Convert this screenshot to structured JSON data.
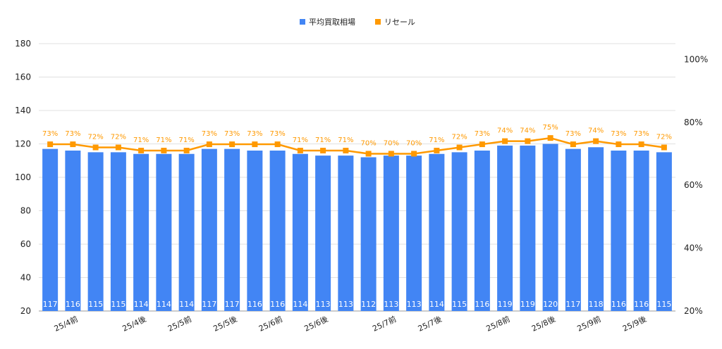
{
  "chart_data": {
    "type": "bar+line",
    "legend": {
      "placement": "top",
      "entries": [
        {
          "name": "平均買取相場",
          "color": "#4285f4"
        },
        {
          "name": "リセール",
          "color": "#ff9900"
        }
      ]
    },
    "categories": [
      "",
      "25/4前",
      "",
      "",
      "25/4後",
      "",
      "25/5前",
      "",
      "25/5後",
      "",
      "25/6前",
      "",
      "25/6後",
      "",
      "",
      "25/7前",
      "",
      "25/7後",
      "",
      "",
      "25/8前",
      "",
      "25/8後",
      "",
      "25/9前",
      "",
      "25/9後",
      ""
    ],
    "series": [
      {
        "name": "平均買取相場",
        "type": "bar",
        "axis": "left",
        "color": "#4285f4",
        "values": [
          117,
          116,
          115,
          115,
          114,
          114,
          114,
          117,
          117,
          116,
          116,
          114,
          113,
          113,
          112,
          113,
          113,
          114,
          115,
          116,
          119,
          119,
          120,
          117,
          118,
          116,
          116,
          115
        ]
      },
      {
        "name": "リセール",
        "type": "line",
        "axis": "right",
        "color": "#ff9900",
        "values": [
          73,
          73,
          72,
          72,
          71,
          71,
          71,
          73,
          73,
          73,
          73,
          71,
          71,
          71,
          70,
          70,
          70,
          71,
          72,
          73,
          74,
          74,
          75,
          73,
          74,
          73,
          73,
          72
        ]
      }
    ],
    "left_axis": {
      "ylim": [
        20,
        180
      ],
      "ticks": [
        20,
        40,
        60,
        80,
        100,
        120,
        140,
        160,
        180
      ]
    },
    "right_axis": {
      "ylim": [
        20,
        105
      ],
      "ticks": [
        "20%",
        "40%",
        "60%",
        "80%",
        "100%"
      ],
      "tick_values": [
        20,
        40,
        60,
        80,
        100
      ]
    },
    "grid": true
  }
}
